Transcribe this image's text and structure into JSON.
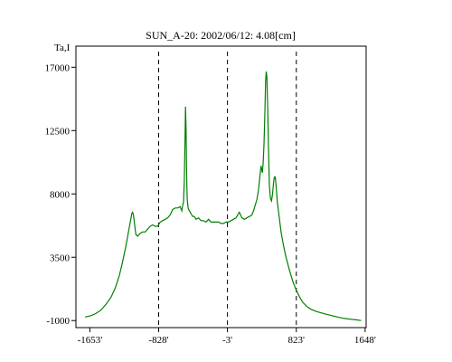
{
  "chart_data": {
    "type": "line",
    "title": "SUN_A-20: 2002/06/12: 4.08[cm]",
    "ylabel": "Ta,I",
    "xlabel": "",
    "xlim": [
      -1820,
      1660
    ],
    "ylim": [
      -1500,
      18500
    ],
    "grid": false,
    "x_tick_labels": [
      "-1653'",
      "-828'",
      "-3'",
      "823'",
      "1648'"
    ],
    "x_tick_values": [
      -1653,
      -828,
      -3,
      823,
      1648
    ],
    "y_tick_labels": [
      "17000",
      "12500",
      "8000",
      "3500",
      "-1000"
    ],
    "y_tick_values": [
      17000,
      12500,
      8000,
      3500,
      -1000
    ],
    "reference_lines": [
      -828,
      -3,
      823
    ],
    "reference_line_style": "dashed",
    "series": [
      {
        "color": "#008000",
        "points": [
          [
            -1710,
            -750
          ],
          [
            -1640,
            -650
          ],
          [
            -1580,
            -500
          ],
          [
            -1520,
            -250
          ],
          [
            -1460,
            150
          ],
          [
            -1400,
            650
          ],
          [
            -1350,
            1300
          ],
          [
            -1300,
            2200
          ],
          [
            -1260,
            3200
          ],
          [
            -1220,
            4300
          ],
          [
            -1190,
            5300
          ],
          [
            -1165,
            6100
          ],
          [
            -1150,
            6600
          ],
          [
            -1140,
            6700
          ],
          [
            -1130,
            6500
          ],
          [
            -1120,
            6000
          ],
          [
            -1110,
            5500
          ],
          [
            -1100,
            5100
          ],
          [
            -1080,
            5000
          ],
          [
            -1050,
            5200
          ],
          [
            -1020,
            5300
          ],
          [
            -990,
            5300
          ],
          [
            -960,
            5500
          ],
          [
            -930,
            5700
          ],
          [
            -900,
            5800
          ],
          [
            -870,
            5700
          ],
          [
            -840,
            5700
          ],
          [
            -810,
            6000
          ],
          [
            -780,
            6100
          ],
          [
            -750,
            6200
          ],
          [
            -720,
            6300
          ],
          [
            -690,
            6500
          ],
          [
            -660,
            6900
          ],
          [
            -630,
            7000
          ],
          [
            -600,
            7000
          ],
          [
            -570,
            7100
          ],
          [
            -550,
            6800
          ],
          [
            -540,
            7200
          ],
          [
            -530,
            7400
          ],
          [
            -520,
            9000
          ],
          [
            -512,
            12000
          ],
          [
            -506,
            14200
          ],
          [
            -500,
            12800
          ],
          [
            -493,
            9500
          ],
          [
            -485,
            7600
          ],
          [
            -475,
            7000
          ],
          [
            -460,
            6800
          ],
          [
            -440,
            6600
          ],
          [
            -420,
            6400
          ],
          [
            -400,
            6400
          ],
          [
            -380,
            6200
          ],
          [
            -350,
            6300
          ],
          [
            -320,
            6100
          ],
          [
            -290,
            6100
          ],
          [
            -260,
            6000
          ],
          [
            -230,
            6200
          ],
          [
            -200,
            6000
          ],
          [
            -170,
            6000
          ],
          [
            -140,
            6000
          ],
          [
            -110,
            6000
          ],
          [
            -80,
            5900
          ],
          [
            -50,
            5900
          ],
          [
            -20,
            6000
          ],
          [
            10,
            6000
          ],
          [
            40,
            6100
          ],
          [
            70,
            6200
          ],
          [
            100,
            6300
          ],
          [
            120,
            6500
          ],
          [
            140,
            6700
          ],
          [
            155,
            6500
          ],
          [
            170,
            6300
          ],
          [
            200,
            6200
          ],
          [
            230,
            6300
          ],
          [
            260,
            6400
          ],
          [
            290,
            6500
          ],
          [
            310,
            6800
          ],
          [
            330,
            7200
          ],
          [
            350,
            7600
          ],
          [
            370,
            8300
          ],
          [
            385,
            9200
          ],
          [
            400,
            10000
          ],
          [
            415,
            9500
          ],
          [
            425,
            10200
          ],
          [
            435,
            11500
          ],
          [
            445,
            13500
          ],
          [
            455,
            16000
          ],
          [
            462,
            16700
          ],
          [
            470,
            16300
          ],
          [
            480,
            14000
          ],
          [
            490,
            11000
          ],
          [
            500,
            8600
          ],
          [
            512,
            7700
          ],
          [
            525,
            7500
          ],
          [
            538,
            8000
          ],
          [
            550,
            8800
          ],
          [
            560,
            9200
          ],
          [
            570,
            9200
          ],
          [
            580,
            8600
          ],
          [
            595,
            7400
          ],
          [
            615,
            6500
          ],
          [
            640,
            5300
          ],
          [
            670,
            4300
          ],
          [
            700,
            3500
          ],
          [
            740,
            2600
          ],
          [
            780,
            1800
          ],
          [
            820,
            1200
          ],
          [
            860,
            700
          ],
          [
            900,
            300
          ],
          [
            950,
            0
          ],
          [
            1000,
            -200
          ],
          [
            1060,
            -350
          ],
          [
            1120,
            -450
          ],
          [
            1180,
            -550
          ],
          [
            1250,
            -650
          ],
          [
            1320,
            -750
          ],
          [
            1400,
            -850
          ],
          [
            1470,
            -900
          ],
          [
            1540,
            -950
          ],
          [
            1600,
            -1000
          ]
        ]
      }
    ]
  }
}
